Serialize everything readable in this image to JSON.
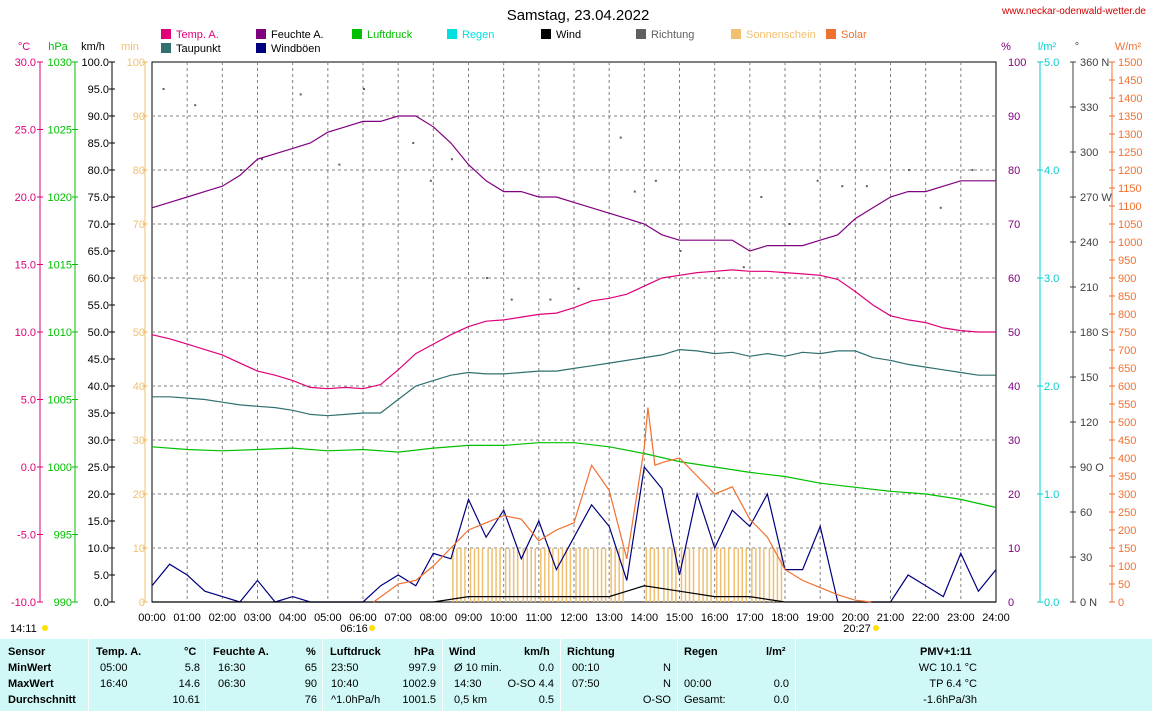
{
  "chart_data": {
    "type": "line",
    "title": "Samstag, 23.04.2022",
    "source_text": "www.neckar-odenwald-wetter.de",
    "x_ticks": [
      "00:00",
      "01:00",
      "02:00",
      "03:00",
      "04:00",
      "05:00",
      "06:00",
      "07:00",
      "08:00",
      "09:00",
      "10:00",
      "11:00",
      "12:00",
      "13:00",
      "14:00",
      "15:00",
      "16:00",
      "17:00",
      "18:00",
      "19:00",
      "20:00",
      "21:00",
      "22:00",
      "23:00",
      "24:00"
    ],
    "sunrise": "06:16",
    "sunset": "20:27",
    "time_left": "14:11",
    "axes": {
      "temp": {
        "unit": "°C",
        "min": -10,
        "max": 30,
        "ticks": [
          "30.0",
          "25.0",
          "20.0",
          "15.0",
          "10.0",
          "5.0",
          "0.0",
          "-5.0",
          "-10.0"
        ],
        "color": "#e0007a"
      },
      "pressure": {
        "unit": "hPa",
        "min": 990,
        "max": 1030,
        "ticks": [
          "1030",
          "1025",
          "1020",
          "1015",
          "1010",
          "1005",
          "1000",
          "995",
          "990"
        ],
        "color": "#00c000"
      },
      "wind": {
        "unit": "km/h",
        "min": 0,
        "max": 100,
        "ticks": [
          "100.0",
          "95.0",
          "90.0",
          "85.0",
          "80.0",
          "75.0",
          "70.0",
          "65.0",
          "60.0",
          "55.0",
          "50.0",
          "45.0",
          "40.0",
          "35.0",
          "30.0",
          "25.0",
          "20.0",
          "15.0",
          "10.0",
          "5.0",
          "0.0"
        ],
        "color": "#000000"
      },
      "sunshine": {
        "unit": "min",
        "ticks": [
          "100",
          "90",
          "80",
          "70",
          "60",
          "50",
          "40",
          "30",
          "20",
          "10",
          "0"
        ],
        "color": "#f0c070"
      },
      "humidity": {
        "unit": "%",
        "min": 0,
        "max": 100,
        "ticks": [
          "100",
          "90",
          "80",
          "70",
          "60",
          "50",
          "40",
          "30",
          "20",
          "10",
          "0"
        ],
        "color": "#800080"
      },
      "rain": {
        "unit": "l/m²",
        "ticks": [
          "5.0",
          "4.0",
          "3.0",
          "2.0",
          "1.0",
          "0.0"
        ],
        "color": "#00d0d0"
      },
      "direction": {
        "unit": "°",
        "ticks": [
          "360 N",
          "330",
          "300",
          "270 W",
          "240",
          "210",
          "180 S",
          "150",
          "120",
          "90 O",
          "60",
          "30",
          "0 N"
        ],
        "color": "#404040"
      },
      "solar": {
        "unit": "W/m²",
        "min": 0,
        "max": 1500,
        "ticks": [
          "1500",
          "1450",
          "1400",
          "1350",
          "1300",
          "1250",
          "1200",
          "1150",
          "1100",
          "1050",
          "1000",
          "950",
          "900",
          "850",
          "800",
          "750",
          "700",
          "650",
          "600",
          "550",
          "500",
          "450",
          "400",
          "350",
          "300",
          "250",
          "200",
          "150",
          "100",
          "50",
          "0"
        ],
        "color": "#f07030"
      }
    },
    "legend": [
      {
        "label": "Temp. A.",
        "color": "#e0007a"
      },
      {
        "label": "Taupunkt",
        "color": "#307070"
      },
      {
        "label": "Feuchte A.",
        "color": "#800080"
      },
      {
        "label": "Windböen",
        "color": "#000080"
      },
      {
        "label": "Luftdruck",
        "color": "#00c000"
      },
      {
        "label": "Regen",
        "color": "#00e0e0"
      },
      {
        "label": "Wind",
        "color": "#000000"
      },
      {
        "label": "Richtung",
        "color": "#606060"
      },
      {
        "label": "Sonnenschein",
        "color": "#f0c070"
      },
      {
        "label": "Solar",
        "color": "#f07030"
      }
    ],
    "series": [
      {
        "name": "Temp. A.",
        "axis": "temp",
        "color": "#e0007a",
        "x": [
          0,
          0.5,
          1,
          1.5,
          2,
          2.5,
          3,
          3.5,
          4,
          4.5,
          5,
          5.5,
          6,
          6.5,
          7,
          7.5,
          8,
          8.5,
          9,
          9.5,
          10,
          10.5,
          11,
          11.5,
          12,
          12.5,
          13,
          13.5,
          14,
          14.5,
          15,
          15.5,
          16,
          16.5,
          17,
          17.5,
          18,
          18.5,
          19,
          19.5,
          20,
          20.5,
          21,
          21.5,
          22,
          22.5,
          23,
          23.5,
          24
        ],
        "y": [
          9.8,
          9.5,
          9.1,
          8.7,
          8.3,
          7.7,
          7.1,
          6.8,
          6.4,
          5.9,
          5.8,
          5.9,
          5.8,
          6.1,
          7.2,
          8.4,
          9.1,
          9.8,
          10.4,
          10.8,
          10.9,
          11.1,
          11.3,
          11.4,
          11.8,
          12.3,
          12.5,
          12.8,
          13.4,
          14,
          14.2,
          14.4,
          14.5,
          14.6,
          14.5,
          14.5,
          14.4,
          14.3,
          14.2,
          13.9,
          13,
          12,
          11.2,
          10.9,
          10.7,
          10.3,
          10.1,
          10,
          10
        ]
      },
      {
        "name": "Taupunkt",
        "axis": "temp",
        "color": "#307070",
        "x": [
          0,
          0.5,
          1,
          1.5,
          2,
          2.5,
          3,
          3.5,
          4,
          4.5,
          5,
          5.5,
          6,
          6.5,
          7,
          7.5,
          8,
          8.5,
          9,
          9.5,
          10,
          10.5,
          11,
          11.5,
          12,
          12.5,
          13,
          13.5,
          14,
          14.5,
          15,
          15.5,
          16,
          16.5,
          17,
          17.5,
          18,
          18.5,
          19,
          19.5,
          20,
          20.5,
          21,
          21.5,
          22,
          22.5,
          23,
          23.5,
          24
        ],
        "y": [
          5.2,
          5.2,
          5.1,
          5,
          4.8,
          4.6,
          4.5,
          4.4,
          4.2,
          3.9,
          3.8,
          3.9,
          4,
          4,
          5,
          6,
          6.4,
          6.8,
          7,
          6.9,
          6.9,
          7,
          7.1,
          7.1,
          7.3,
          7.5,
          7.7,
          7.9,
          8.1,
          8.3,
          8.7,
          8.6,
          8.4,
          8.5,
          8.2,
          8.4,
          8.2,
          8.5,
          8.4,
          8.6,
          8.6,
          8.1,
          7.9,
          7.6,
          7.4,
          7.2,
          7,
          6.8,
          6.8
        ]
      },
      {
        "name": "Feuchte A.",
        "axis": "humidity",
        "color": "#800080",
        "x": [
          0,
          0.5,
          1,
          1.5,
          2,
          2.5,
          3,
          3.5,
          4,
          4.5,
          5,
          5.5,
          6,
          6.5,
          7,
          7.5,
          8,
          8.5,
          9,
          9.5,
          10,
          10.5,
          11,
          11.5,
          12,
          12.5,
          13,
          13.5,
          14,
          14.5,
          15,
          15.5,
          16,
          16.5,
          17,
          17.5,
          18,
          18.5,
          19,
          19.5,
          20,
          20.5,
          21,
          21.5,
          22,
          22.5,
          23,
          23.5,
          24
        ],
        "y": [
          73,
          74,
          75,
          76,
          77,
          79,
          82,
          83,
          84,
          85,
          87,
          88,
          89,
          89,
          90,
          90,
          88,
          85,
          81,
          78,
          76,
          76,
          75,
          75,
          74,
          73,
          72,
          71,
          70,
          68,
          67,
          67,
          67,
          67,
          65,
          66,
          66,
          66,
          67,
          68,
          71,
          73,
          75,
          76,
          76,
          77,
          78,
          78,
          78
        ]
      },
      {
        "name": "Luftdruck",
        "axis": "pressure",
        "color": "#00c000",
        "x": [
          0,
          1,
          2,
          3,
          4,
          5,
          6,
          7,
          8,
          9,
          10,
          11,
          12,
          13,
          14,
          15,
          16,
          17,
          18,
          19,
          20,
          21,
          22,
          23,
          24
        ],
        "y": [
          1001.5,
          1001.3,
          1001.2,
          1001.3,
          1001.4,
          1001.2,
          1001.3,
          1001.1,
          1001.4,
          1001.6,
          1001.6,
          1001.8,
          1001.8,
          1001.5,
          1001,
          1000.4,
          1000,
          999.6,
          999.3,
          998.8,
          998.5,
          998.2,
          998,
          997.6,
          997
        ]
      },
      {
        "name": "Windböen",
        "axis": "wind",
        "color": "#000080",
        "x": [
          0,
          0.5,
          1,
          1.5,
          2,
          2.5,
          3,
          3.5,
          4,
          4.5,
          5,
          5.5,
          6,
          6.5,
          7,
          7.5,
          8,
          8.5,
          9,
          9.5,
          10,
          10.5,
          11,
          11.5,
          12,
          12.5,
          13,
          13.5,
          14,
          14.5,
          15,
          15.5,
          16,
          16.5,
          17,
          17.5,
          18,
          18.5,
          19,
          19.5,
          20,
          20.5,
          21,
          21.5,
          22,
          22.5,
          23,
          23.5,
          24
        ],
        "y": [
          3,
          7,
          5,
          2,
          1,
          0,
          4,
          0,
          1,
          0,
          0,
          0,
          0,
          3,
          5,
          3,
          9,
          8,
          19,
          12,
          17,
          8,
          15,
          6,
          12,
          18,
          14,
          4,
          25,
          21,
          5,
          20,
          10,
          17,
          14,
          20,
          6,
          6,
          14,
          0,
          0,
          0,
          0,
          5,
          3,
          1,
          9,
          2,
          6
        ]
      },
      {
        "name": "Wind",
        "axis": "wind",
        "color": "#000000",
        "x": [
          0,
          1,
          2,
          3,
          4,
          5,
          6,
          7,
          8,
          9,
          10,
          11,
          12,
          13,
          14,
          15,
          16,
          17,
          18,
          19,
          20,
          21,
          22,
          23,
          24
        ],
        "y": [
          0,
          0,
          0,
          0,
          0,
          0,
          0,
          0,
          0,
          1,
          1,
          1,
          1,
          1,
          3,
          2,
          1,
          1,
          0,
          0,
          0,
          0,
          0,
          0,
          0
        ]
      },
      {
        "name": "Solar",
        "axis": "solar",
        "color": "#f07030",
        "x": [
          6.3,
          7,
          7.5,
          8,
          8.5,
          9,
          9.5,
          10,
          10.5,
          11,
          11.5,
          12,
          12.5,
          13,
          13.5,
          14,
          14.1,
          14.3,
          14.6,
          15,
          15.5,
          16,
          16.5,
          17,
          17.5,
          18,
          18.5,
          19,
          19.5,
          20,
          20.45
        ],
        "y": [
          0,
          50,
          60,
          100,
          150,
          200,
          220,
          240,
          230,
          170,
          200,
          220,
          380,
          310,
          120,
          430,
          540,
          380,
          390,
          400,
          350,
          300,
          320,
          230,
          180,
          90,
          60,
          40,
          20,
          5,
          0
        ]
      }
    ],
    "sunshine": {
      "x": [
        8.5,
        9,
        9.5,
        10,
        10.5,
        11,
        11.5,
        12,
        12.5,
        13,
        14,
        14.5,
        15,
        15.5,
        16,
        16.5,
        17,
        17.5
      ],
      "y": [
        10,
        10,
        10,
        10,
        10,
        10,
        10,
        10,
        10,
        10,
        10,
        10,
        10,
        10,
        10,
        10,
        10,
        10
      ]
    },
    "direction_points": {
      "x": [
        0.3,
        1.2,
        2.5,
        3.1,
        4.2,
        5.3,
        6,
        7.4,
        7.9,
        8.5,
        9.5,
        10.2,
        11.3,
        12.1,
        13.3,
        13.7,
        14.3,
        15,
        16.1,
        16.8,
        17.3,
        18.1,
        18.9,
        19.6,
        20.3,
        21.5,
        22.4,
        23.3
      ],
      "y": [
        95,
        92,
        80,
        82,
        94,
        81,
        95,
        85,
        78,
        82,
        60,
        56,
        56,
        58,
        86,
        76,
        78,
        65,
        60,
        62,
        75,
        70,
        78,
        77,
        77,
        80,
        73,
        80
      ]
    }
  },
  "table": {
    "headers": [
      "Sensor",
      "Temp. A.",
      "°C",
      "Feuchte A.",
      "%",
      "Luftdruck",
      "hPa",
      "Wind",
      "km/h",
      "Richtung",
      "Regen",
      "l/m²",
      "PMV+1:11"
    ],
    "rows": [
      {
        "label": "MinWert",
        "temp_time": "05:00",
        "temp_val": "5.8",
        "hum_time": "16:30",
        "hum_val": "65",
        "press_time": "23:50",
        "press_val": "997.9",
        "wind_time": "Ø 10 min.",
        "wind_val": "0.0",
        "dir_time": "00:10",
        "dir_val": "N",
        "rain_time": "",
        "rain_val": "",
        "pmv": "WC 10.1 °C"
      },
      {
        "label": "MaxWert",
        "temp_time": "16:40",
        "temp_val": "14.6",
        "hum_time": "06:30",
        "hum_val": "90",
        "press_time": "10:40",
        "press_val": "1002.9",
        "wind_time": "14:30",
        "wind_val": "O-SO 4.4",
        "dir_time": "07:50",
        "dir_val": "N",
        "rain_time": "00:00",
        "rain_val": "0.0",
        "pmv": "TP 6.4 °C"
      },
      {
        "label": "Durchschnitt",
        "temp_time": "",
        "temp_val": "10.61",
        "hum_time": "",
        "hum_val": "76",
        "press_time": "^1.0hPa/h",
        "press_val": "1001.5",
        "wind_time": "0,5 km",
        "wind_val": "0.5",
        "dir_time": "",
        "dir_val": "O-SO",
        "rain_time": "Gesamt:",
        "rain_val": "0.0",
        "pmv": "-1.6hPa/3h"
      }
    ]
  }
}
